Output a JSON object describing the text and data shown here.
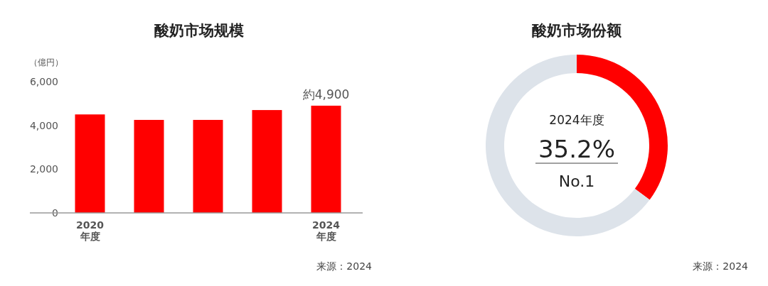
{
  "chart_data": [
    {
      "type": "bar",
      "title": "酸奶市场规模",
      "ylabel": "（億円）",
      "categories": [
        "2020\n年度",
        null,
        null,
        null,
        "2024\n年度"
      ],
      "values": [
        4500,
        4250,
        4250,
        4700,
        4900
      ],
      "color": "#ff0000",
      "value_labels": [
        null,
        null,
        null,
        null,
        "約4,900"
      ],
      "ylim": [
        0,
        6000
      ],
      "yticks": [
        {
          "value": 0,
          "label": "0"
        },
        {
          "value": 2000,
          "label": "2,000"
        },
        {
          "value": 4000,
          "label": "4,000"
        },
        {
          "value": 6000,
          "label": "6,000"
        }
      ],
      "grid": false,
      "annotations": [
        "来源：2024"
      ]
    },
    {
      "type": "donut",
      "title": "酸奶市场份额",
      "categories": [
        null,
        null
      ],
      "values": [
        35.2,
        64.8
      ],
      "colors": [
        "#ff0000",
        "#dde3ea"
      ],
      "annotations": [
        "2024年度",
        "35.2%",
        "No.1",
        "来源：2024"
      ]
    }
  ]
}
